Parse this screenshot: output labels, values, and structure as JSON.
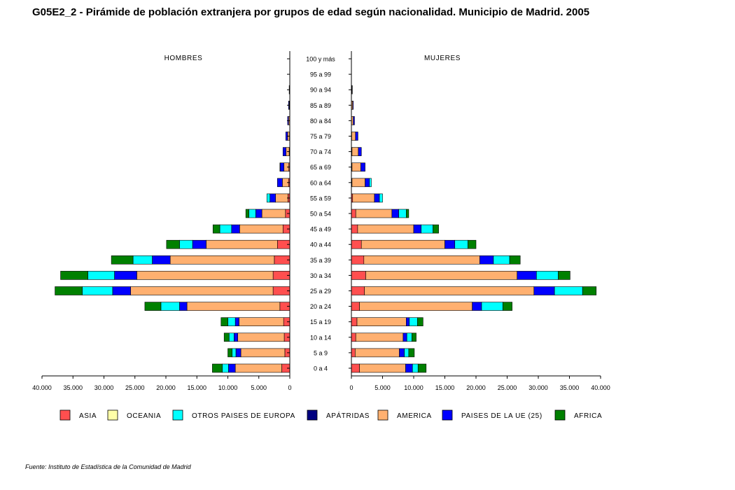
{
  "chart_data": {
    "type": "bar",
    "title": "G05E2_2 - Pirámide de población extranjera por grupos de edad según nacionalidad.  Municipio de Madrid.  2005",
    "left_panel_label": "HOMBRES",
    "right_panel_label": "MUJERES",
    "categories": [
      "100 y más",
      "95 a 99",
      "90 a 94",
      "85 a 89",
      "80 a 84",
      "75 a 79",
      "70 a 74",
      "65 a 69",
      "60 a 64",
      "55 a 59",
      "50 a 54",
      "45 a 49",
      "40 a  44",
      "35 a 39",
      "30 a 34",
      "25 a 29",
      "20 a 24",
      "15 a 19",
      "10 a 14",
      "5 a 9",
      "0 a 4"
    ],
    "xlim_hombres": [
      40000,
      0
    ],
    "xlim_mujeres": [
      0,
      40000
    ],
    "x_ticks_hombres": [
      "40.000",
      "35.000",
      "30.000",
      "25.000",
      "20.000",
      "15.000",
      "10.000",
      "5.000",
      "0"
    ],
    "x_ticks_mujeres": [
      "0",
      "5.000",
      "10.000",
      "15.000",
      "20.000",
      "25.000",
      "30.000",
      "35.000",
      "40.000"
    ],
    "stack_order": [
      "ASIA",
      "OCEANIA",
      "APÁTRIDAS",
      "AMERICA",
      "PAISES DE LA UE (25)",
      "OTROS PAISES DE EUROPA",
      "AFRICA"
    ],
    "legend": [
      {
        "name": "ASIA",
        "color": "#ff4f4f"
      },
      {
        "name": "OCEANIA",
        "color": "#ffffa8"
      },
      {
        "name": "OTROS PAISES DE EUROPA",
        "color": "#00ffff"
      },
      {
        "name": "APÁTRIDAS",
        "color": "#000080"
      },
      {
        "name": "AMERICA",
        "color": "#ffb070"
      },
      {
        "name": "PAISES DE LA UE (25)",
        "color": "#0000ff"
      },
      {
        "name": "AFRICA",
        "color": "#008000"
      }
    ],
    "legend_placement": "bottom",
    "grid": false,
    "series_hombres": [
      {
        "name": "ASIA",
        "values": [
          0,
          0,
          0,
          0,
          0,
          50,
          100,
          150,
          200,
          300,
          700,
          1100,
          2000,
          2500,
          2700,
          2700,
          1600,
          1000,
          900,
          800,
          1300
        ]
      },
      {
        "name": "OCEANIA",
        "values": [
          0,
          0,
          0,
          0,
          0,
          0,
          0,
          0,
          0,
          0,
          0,
          0,
          0,
          0,
          0,
          0,
          0,
          0,
          0,
          0,
          0
        ]
      },
      {
        "name": "APÁTRIDAS",
        "values": [
          0,
          0,
          0,
          0,
          0,
          0,
          0,
          0,
          0,
          0,
          0,
          0,
          0,
          0,
          0,
          0,
          0,
          0,
          0,
          0,
          0
        ]
      },
      {
        "name": "AMERICA",
        "values": [
          0,
          20,
          50,
          100,
          200,
          300,
          500,
          800,
          1000,
          2000,
          3800,
          7000,
          11500,
          16800,
          22000,
          23000,
          15000,
          7200,
          7500,
          7100,
          7500
        ]
      },
      {
        "name": "PAISES DE LA UE (25)",
        "values": [
          0,
          0,
          50,
          100,
          150,
          300,
          500,
          600,
          800,
          900,
          1000,
          1300,
          2200,
          2900,
          3600,
          2900,
          1200,
          600,
          600,
          800,
          1100
        ]
      },
      {
        "name": "OTROS PAISES DE EUROPA",
        "values": [
          0,
          0,
          0,
          0,
          0,
          0,
          0,
          50,
          0,
          500,
          1100,
          1900,
          2100,
          3100,
          4300,
          4900,
          3000,
          1200,
          800,
          600,
          1000
        ]
      },
      {
        "name": "AFRICA",
        "values": [
          0,
          0,
          0,
          0,
          0,
          0,
          0,
          0,
          0,
          0,
          500,
          1100,
          2100,
          3500,
          4400,
          4400,
          2600,
          1100,
          800,
          700,
          1600
        ]
      }
    ],
    "series_mujeres": [
      {
        "name": "ASIA",
        "values": [
          0,
          0,
          0,
          0,
          0,
          50,
          100,
          100,
          100,
          200,
          700,
          1000,
          1600,
          2000,
          2300,
          2100,
          1300,
          900,
          700,
          600,
          1300
        ]
      },
      {
        "name": "OCEANIA",
        "values": [
          0,
          0,
          0,
          0,
          0,
          0,
          0,
          0,
          0,
          0,
          0,
          0,
          0,
          0,
          0,
          0,
          0,
          0,
          0,
          0,
          0
        ]
      },
      {
        "name": "APÁTRIDAS",
        "values": [
          0,
          0,
          0,
          0,
          0,
          0,
          0,
          0,
          0,
          0,
          0,
          0,
          0,
          0,
          0,
          0,
          0,
          0,
          0,
          0,
          0
        ]
      },
      {
        "name": "AMERICA",
        "values": [
          0,
          20,
          100,
          200,
          300,
          600,
          1000,
          1400,
          2100,
          3500,
          5800,
          9000,
          13400,
          18600,
          24300,
          27200,
          18100,
          7900,
          7600,
          7100,
          7400
        ]
      },
      {
        "name": "PAISES DE LA UE (25)",
        "values": [
          0,
          0,
          50,
          100,
          200,
          400,
          500,
          700,
          700,
          800,
          1100,
          1200,
          1600,
          2200,
          3100,
          3300,
          1500,
          500,
          600,
          800,
          1100
        ]
      },
      {
        "name": "OTROS PAISES DE EUROPA",
        "values": [
          0,
          0,
          0,
          0,
          0,
          0,
          0,
          0,
          300,
          500,
          1200,
          1900,
          2100,
          2600,
          3500,
          4500,
          3400,
          1300,
          800,
          700,
          900
        ]
      },
      {
        "name": "AFRICA",
        "values": [
          0,
          0,
          0,
          0,
          0,
          0,
          0,
          0,
          0,
          0,
          400,
          900,
          1300,
          1700,
          1900,
          2200,
          1500,
          900,
          700,
          900,
          1300
        ]
      }
    ],
    "source": "Fuente: Instituto de Estadística de la Comunidad de Madrid"
  }
}
